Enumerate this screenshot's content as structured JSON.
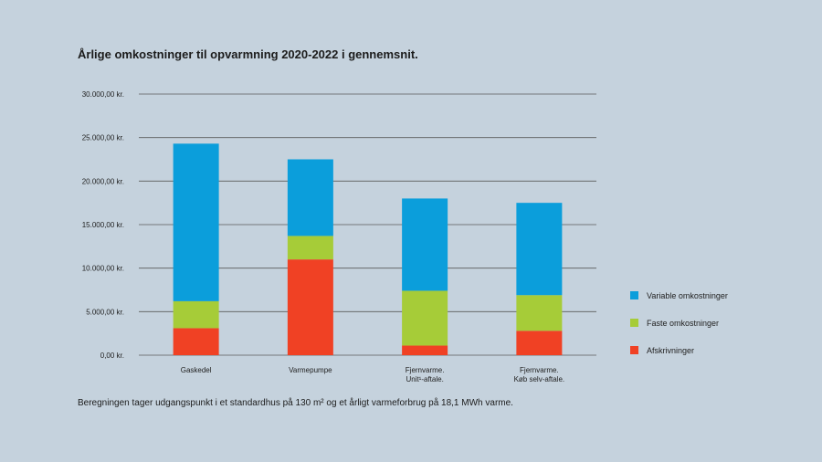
{
  "chart_data": {
    "type": "bar",
    "stacked": true,
    "title": "Årlige omkostninger til opvarmning 2020-2022 i gennemsnit.",
    "categories": [
      [
        "Gaskedel"
      ],
      [
        "Varmepumpe"
      ],
      [
        "Fjernvarme.",
        "Unit¹-aftale."
      ],
      [
        "Fjernvarme.",
        "Køb selv-aftale."
      ]
    ],
    "series": [
      {
        "name": "Afskrivninger",
        "color": "#f04124",
        "values": [
          3100,
          11000,
          1100,
          2800
        ]
      },
      {
        "name": "Faste omkostninger",
        "color": "#a6cc38",
        "values": [
          3100,
          2700,
          6300,
          4100
        ]
      },
      {
        "name": "Variable omkostninger",
        "color": "#0b9edb",
        "values": [
          18100,
          8800,
          10600,
          10600
        ]
      }
    ],
    "y_ticks": [
      "0,00 kr.",
      "5.000,00 kr.",
      "10.000,00 kr.",
      "15.000,00 kr.",
      "20.000,00 kr.",
      "25.000,00 kr.",
      "30.000,00 kr."
    ],
    "ylim": [
      0,
      30000
    ],
    "grid": true,
    "legend_position": "right",
    "legend_order": [
      "Variable omkostninger",
      "Faste omkostninger",
      "Afskrivninger"
    ]
  },
  "footnote": "Beregningen tager udgangspunkt i et standardhus på 130 m² og et årligt varmeforbrug på 18,1 MWh varme."
}
